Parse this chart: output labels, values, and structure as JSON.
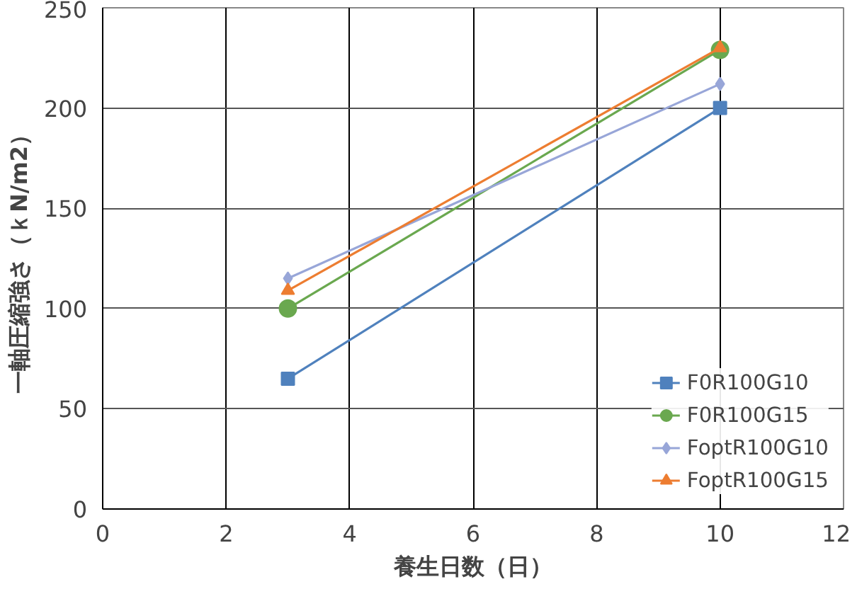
{
  "chart_data": {
    "type": "line",
    "xlabel": "養生日数（日）",
    "ylabel": "一軸圧縮強さ（ｋN/m2）",
    "xlim": [
      0,
      12
    ],
    "ylim": [
      0,
      250
    ],
    "xticks": [
      0,
      2,
      4,
      6,
      8,
      10,
      12
    ],
    "yticks": [
      0,
      50,
      100,
      150,
      200,
      250
    ],
    "grid": true,
    "legend": "bottom right",
    "x": [
      3,
      10
    ],
    "series": [
      {
        "name": "F0R100G10",
        "color": "#4f81bd",
        "marker": "square",
        "values": [
          65,
          200
        ]
      },
      {
        "name": "F0R100G15",
        "color": "#6aa84f",
        "marker": "circle",
        "values": [
          100,
          229
        ]
      },
      {
        "name": "FoptR100G10",
        "color": "#98a6d8",
        "marker": "diamond",
        "values": [
          115,
          212
        ]
      },
      {
        "name": "FoptR100G15",
        "color": "#ed7d31",
        "marker": "triangle",
        "values": [
          109,
          230
        ]
      }
    ]
  }
}
